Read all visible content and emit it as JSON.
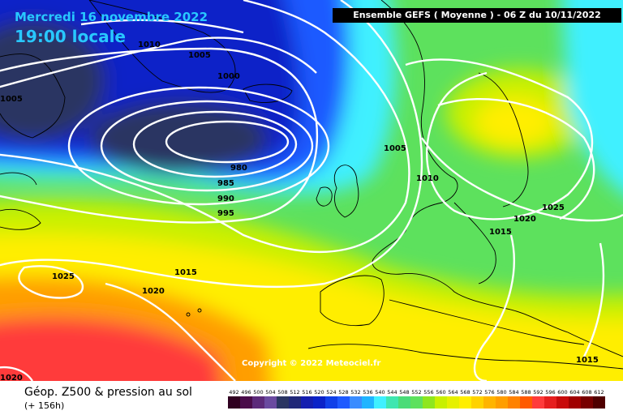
{
  "header": {
    "date": "Mercredi 16 novembre 2022",
    "time": "19:00 locale",
    "run": "Ensemble GEFS  ( Moyenne )  -  06 Z du 10/11/2022"
  },
  "map": {
    "copyright": "Copyright © 2022 Meteociel.fr",
    "isobar_labels": [
      "1010",
      "1005",
      "1000",
      "1005",
      "980",
      "985",
      "990",
      "995",
      "1005",
      "1010",
      "1025",
      "1020",
      "1015",
      "1015",
      "1020",
      "1025",
      "1015",
      "1020"
    ],
    "colors": {
      "deep_low": "#2a3562",
      "low": "#0a22c8",
      "blue": "#1e5aff",
      "cyan": "#3ff0ff",
      "green": "#5de15d",
      "yellow_green": "#c8f000",
      "yellow": "#ffee00",
      "orange": "#ff9e00",
      "red": "#ff3b3b",
      "isobar": "#ffffff",
      "coast": "#000000"
    }
  },
  "legend": {
    "title": "Géop. Z500 & pression au sol",
    "subtitle": "(+ 156h)",
    "scale_labels": [
      "492",
      "496",
      "500",
      "504",
      "508",
      "512",
      "516",
      "520",
      "524",
      "528",
      "532",
      "536",
      "540",
      "544",
      "548",
      "552",
      "556",
      "560",
      "564",
      "568",
      "572",
      "576",
      "580",
      "584",
      "588",
      "592",
      "596",
      "600",
      "604",
      "608",
      "612"
    ],
    "scale_colors": [
      "#300020",
      "#4a0c4a",
      "#5c2a7a",
      "#6a4aa0",
      "#2a3562",
      "#202878",
      "#141eb0",
      "#0a22c8",
      "#1040e8",
      "#1e5aff",
      "#3a8cff",
      "#20b4ff",
      "#3ff0ff",
      "#3fe6b0",
      "#4adc78",
      "#5de15d",
      "#8ee61e",
      "#c8f000",
      "#e6f000",
      "#ffee00",
      "#ffd200",
      "#ffb400",
      "#ff9e00",
      "#ff8200",
      "#ff5a00",
      "#ff3b3b",
      "#e61e1e",
      "#c80a0a",
      "#a00000",
      "#780000",
      "#500000"
    ]
  }
}
